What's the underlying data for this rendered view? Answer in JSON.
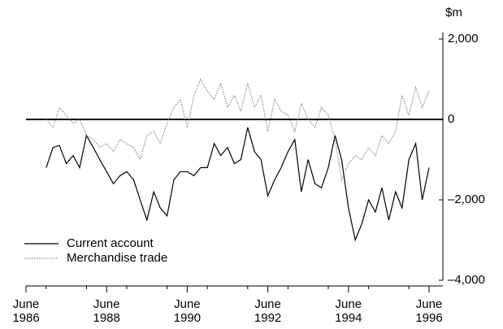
{
  "chart_data": {
    "type": "line",
    "unit_label": "$m",
    "x": [
      1987,
      1987.17,
      1987.33,
      1987.5,
      1987.67,
      1987.83,
      1988,
      1988.17,
      1988.33,
      1988.5,
      1988.67,
      1988.83,
      1989,
      1989.17,
      1989.33,
      1989.5,
      1989.67,
      1989.83,
      1990,
      1990.17,
      1990.33,
      1990.5,
      1990.67,
      1990.83,
      1991,
      1991.17,
      1991.33,
      1991.5,
      1991.67,
      1991.83,
      1992,
      1992.17,
      1992.33,
      1992.5,
      1992.67,
      1992.83,
      1993,
      1993.17,
      1993.33,
      1993.5,
      1993.67,
      1993.83,
      1994,
      1994.17,
      1994.33,
      1994.5,
      1994.67,
      1994.83,
      1995,
      1995.17,
      1995.33,
      1995.5,
      1995.67,
      1995.83,
      1996,
      1996.17,
      1996.33,
      1996.5
    ],
    "series": [
      {
        "name": "Current account",
        "color": "#000000",
        "dash": "none",
        "values": [
          -1200,
          -700,
          -650,
          -1100,
          -900,
          -1200,
          -400,
          -700,
          -1000,
          -1300,
          -1600,
          -1400,
          -1300,
          -1500,
          -2000,
          -2500,
          -1800,
          -2200,
          -2400,
          -1500,
          -1300,
          -1300,
          -1400,
          -1200,
          -1200,
          -600,
          -900,
          -700,
          -1100,
          -1000,
          -200,
          -800,
          -1000,
          -1900,
          -1500,
          -1200,
          -800,
          -500,
          -1800,
          -1000,
          -1600,
          -1700,
          -1200,
          -400,
          -1000,
          -2200,
          -3000,
          -2600,
          -2000,
          -2300,
          -1700,
          -2500,
          -1800,
          -2200,
          -1000,
          -600,
          -2000,
          -1200
        ]
      },
      {
        "name": "Merchandise trade",
        "color": "#8a8a8a",
        "dash": "1.5 1.5",
        "values": [
          0,
          -200,
          300,
          100,
          -100,
          0,
          -400,
          -500,
          -700,
          -600,
          -800,
          -500,
          -600,
          -700,
          -1000,
          -400,
          -300,
          -600,
          -100,
          300,
          500,
          -200,
          600,
          1000,
          700,
          500,
          900,
          300,
          600,
          200,
          900,
          300,
          600,
          -300,
          500,
          200,
          100,
          -300,
          400,
          0,
          -200,
          300,
          100,
          -500,
          -1500,
          -1100,
          -900,
          -1000,
          -700,
          -900,
          -400,
          -600,
          -300,
          600,
          100,
          800,
          300,
          700
        ]
      }
    ],
    "xlim": [
      1986.5,
      1996.5
    ],
    "xticks": [
      {
        "value": 1986.5,
        "label": "June 1986"
      },
      {
        "value": 1988.5,
        "label": "June 1988"
      },
      {
        "value": 1990.5,
        "label": "June 1990"
      },
      {
        "value": 1992.5,
        "label": "June 1992"
      },
      {
        "value": 1994.5,
        "label": "June 1994"
      },
      {
        "value": 1996.5,
        "label": "June 1996"
      }
    ],
    "ylim": [
      -4000,
      2000
    ],
    "yticks": [
      {
        "value": 2000,
        "label": "2,000"
      },
      0,
      {
        "value": -2000,
        "label": "–2,000"
      },
      {
        "value": -4000,
        "label": "–4,000"
      }
    ],
    "legend": "lower left"
  }
}
